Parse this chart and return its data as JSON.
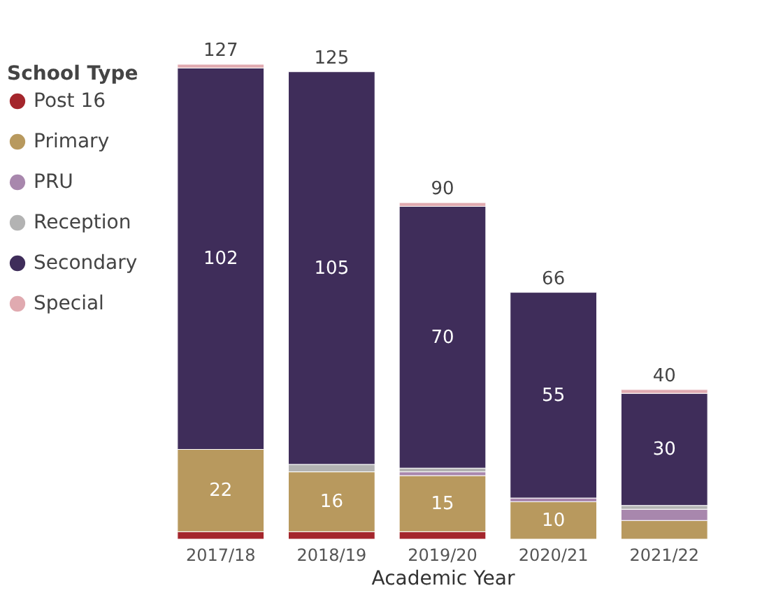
{
  "chart_data": {
    "type": "bar",
    "stacked": true,
    "xlabel": "Academic Year",
    "legend_title": "School Type",
    "legend": "top left",
    "categories": [
      "2017/18",
      "2018/19",
      "2019/20",
      "2020/21",
      "2021/22"
    ],
    "series": [
      {
        "name": "Post 16",
        "color": "#a4262c",
        "values": [
          2,
          2,
          2,
          0,
          0
        ],
        "value_labels": [
          null,
          null,
          null,
          null,
          null
        ]
      },
      {
        "name": "Primary",
        "color": "#b8995e",
        "values": [
          22,
          16,
          15,
          10,
          5
        ],
        "value_labels": [
          "22",
          "16",
          "15",
          "10",
          null
        ]
      },
      {
        "name": "PRU",
        "color": "#a887ad",
        "values": [
          0,
          0,
          1,
          1,
          3
        ],
        "value_labels": [
          null,
          null,
          null,
          null,
          null
        ]
      },
      {
        "name": "Reception",
        "color": "#b3b3b3",
        "values": [
          0,
          2,
          1,
          0,
          1
        ],
        "value_labels": [
          null,
          null,
          null,
          null,
          null
        ]
      },
      {
        "name": "Secondary",
        "color": "#3f2d5a",
        "values": [
          102,
          105,
          70,
          55,
          30
        ],
        "value_labels": [
          "102",
          "105",
          "70",
          "55",
          "30"
        ]
      },
      {
        "name": "Special",
        "color": "#e0aab0",
        "values": [
          1,
          0,
          1,
          0,
          1
        ],
        "value_labels": [
          null,
          null,
          null,
          null,
          null
        ]
      }
    ],
    "totals": [
      "127",
      "125",
      "90",
      "66",
      "40"
    ]
  }
}
